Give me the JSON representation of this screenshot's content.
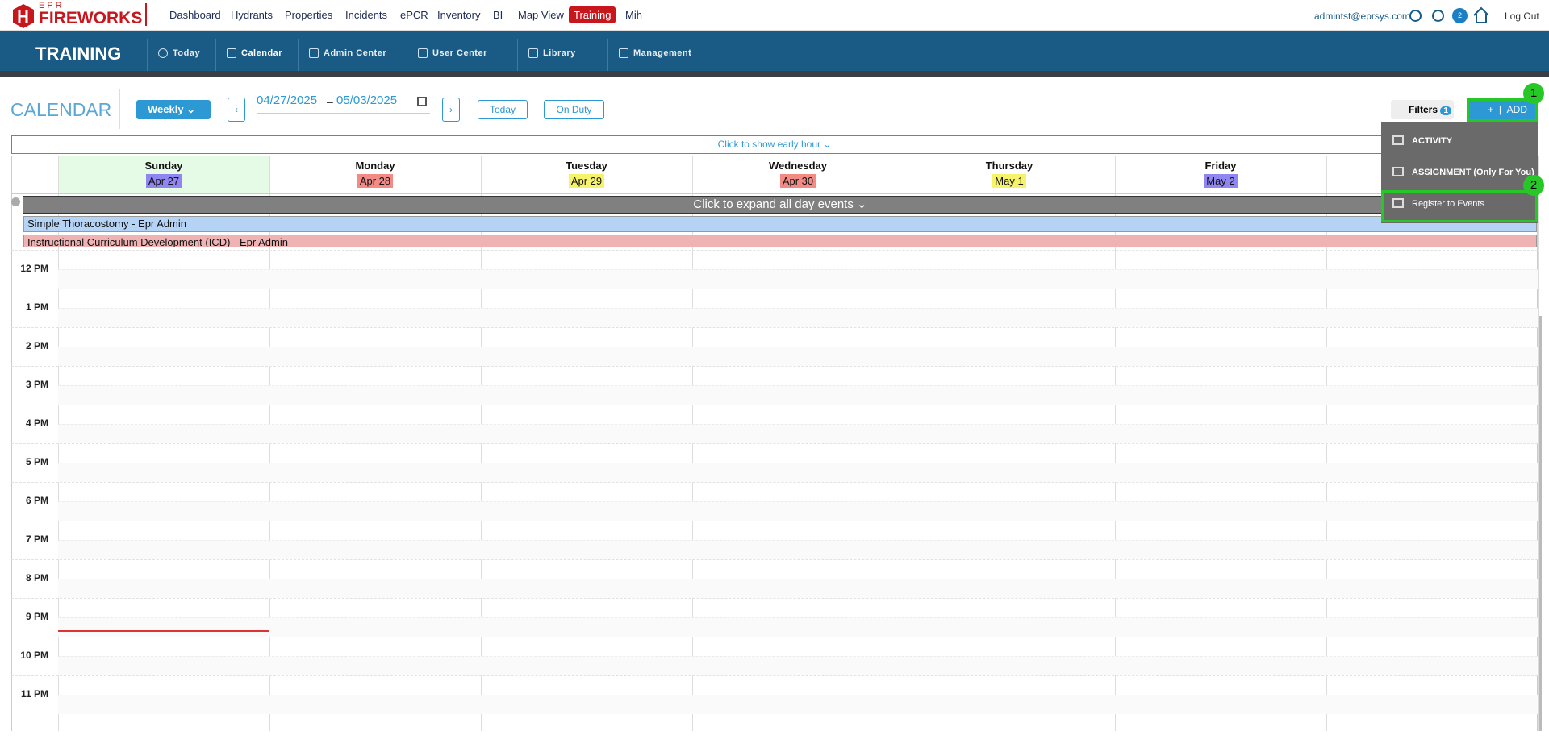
{
  "header": {
    "logo_top": "EPR",
    "logo": "FIREWORKS",
    "nav": [
      "Dashboard",
      "Hydrants",
      "Properties",
      "Incidents",
      "ePCR",
      "Inventory",
      "BI",
      "Map View",
      "Training",
      "Mih"
    ],
    "active_index": 8,
    "user": "admintst@eprsys.com",
    "badge": "2",
    "logout": "Log Out"
  },
  "module": {
    "title": "TRAINING",
    "tabs": [
      "Today",
      "Calendar",
      "Admin Center",
      "User Center",
      "Library",
      "Management"
    ],
    "active_index": 1
  },
  "toolbar": {
    "title": "CALENDAR",
    "view": "Weekly",
    "date_start": "04/27/2025",
    "date_sep": "–",
    "date_end": "05/03/2025",
    "today": "Today",
    "on_duty": "On Duty",
    "filters": "Filters",
    "filter_count": "1",
    "add": "ADD"
  },
  "dropdown": {
    "items": [
      "ACTIVITY",
      "ASSIGNMENT (Only For You)",
      "Register to Events"
    ]
  },
  "annotations": [
    "1",
    "2"
  ],
  "calendar": {
    "early_hour": "Click to show early hour",
    "days": [
      {
        "name": "Sunday",
        "date": "Apr 27",
        "color": "#8f86f2"
      },
      {
        "name": "Monday",
        "date": "Apr 28",
        "color": "#f28b86"
      },
      {
        "name": "Tuesday",
        "date": "Apr 29",
        "color": "#f6f36b"
      },
      {
        "name": "Wednesday",
        "date": "Apr 30",
        "color": "#f28b86"
      },
      {
        "name": "Thursday",
        "date": "May 1",
        "color": "#f6f36b"
      },
      {
        "name": "Friday",
        "date": "May 2",
        "color": "#8f86f2"
      }
    ],
    "all_day": "Click to expand all day events",
    "events": [
      {
        "title": "Simple Thoracostomy - Epr Admin",
        "color": "#b5d3f5"
      },
      {
        "title": "Instructional Curriculum Development (ICD) - Epr Admin",
        "color": "#f0b3b3"
      }
    ],
    "hours": [
      "12 PM",
      "1 PM",
      "2 PM",
      "3 PM",
      "4 PM",
      "5 PM",
      "6 PM",
      "7 PM",
      "8 PM",
      "9 PM",
      "10 PM",
      "11 PM"
    ]
  }
}
